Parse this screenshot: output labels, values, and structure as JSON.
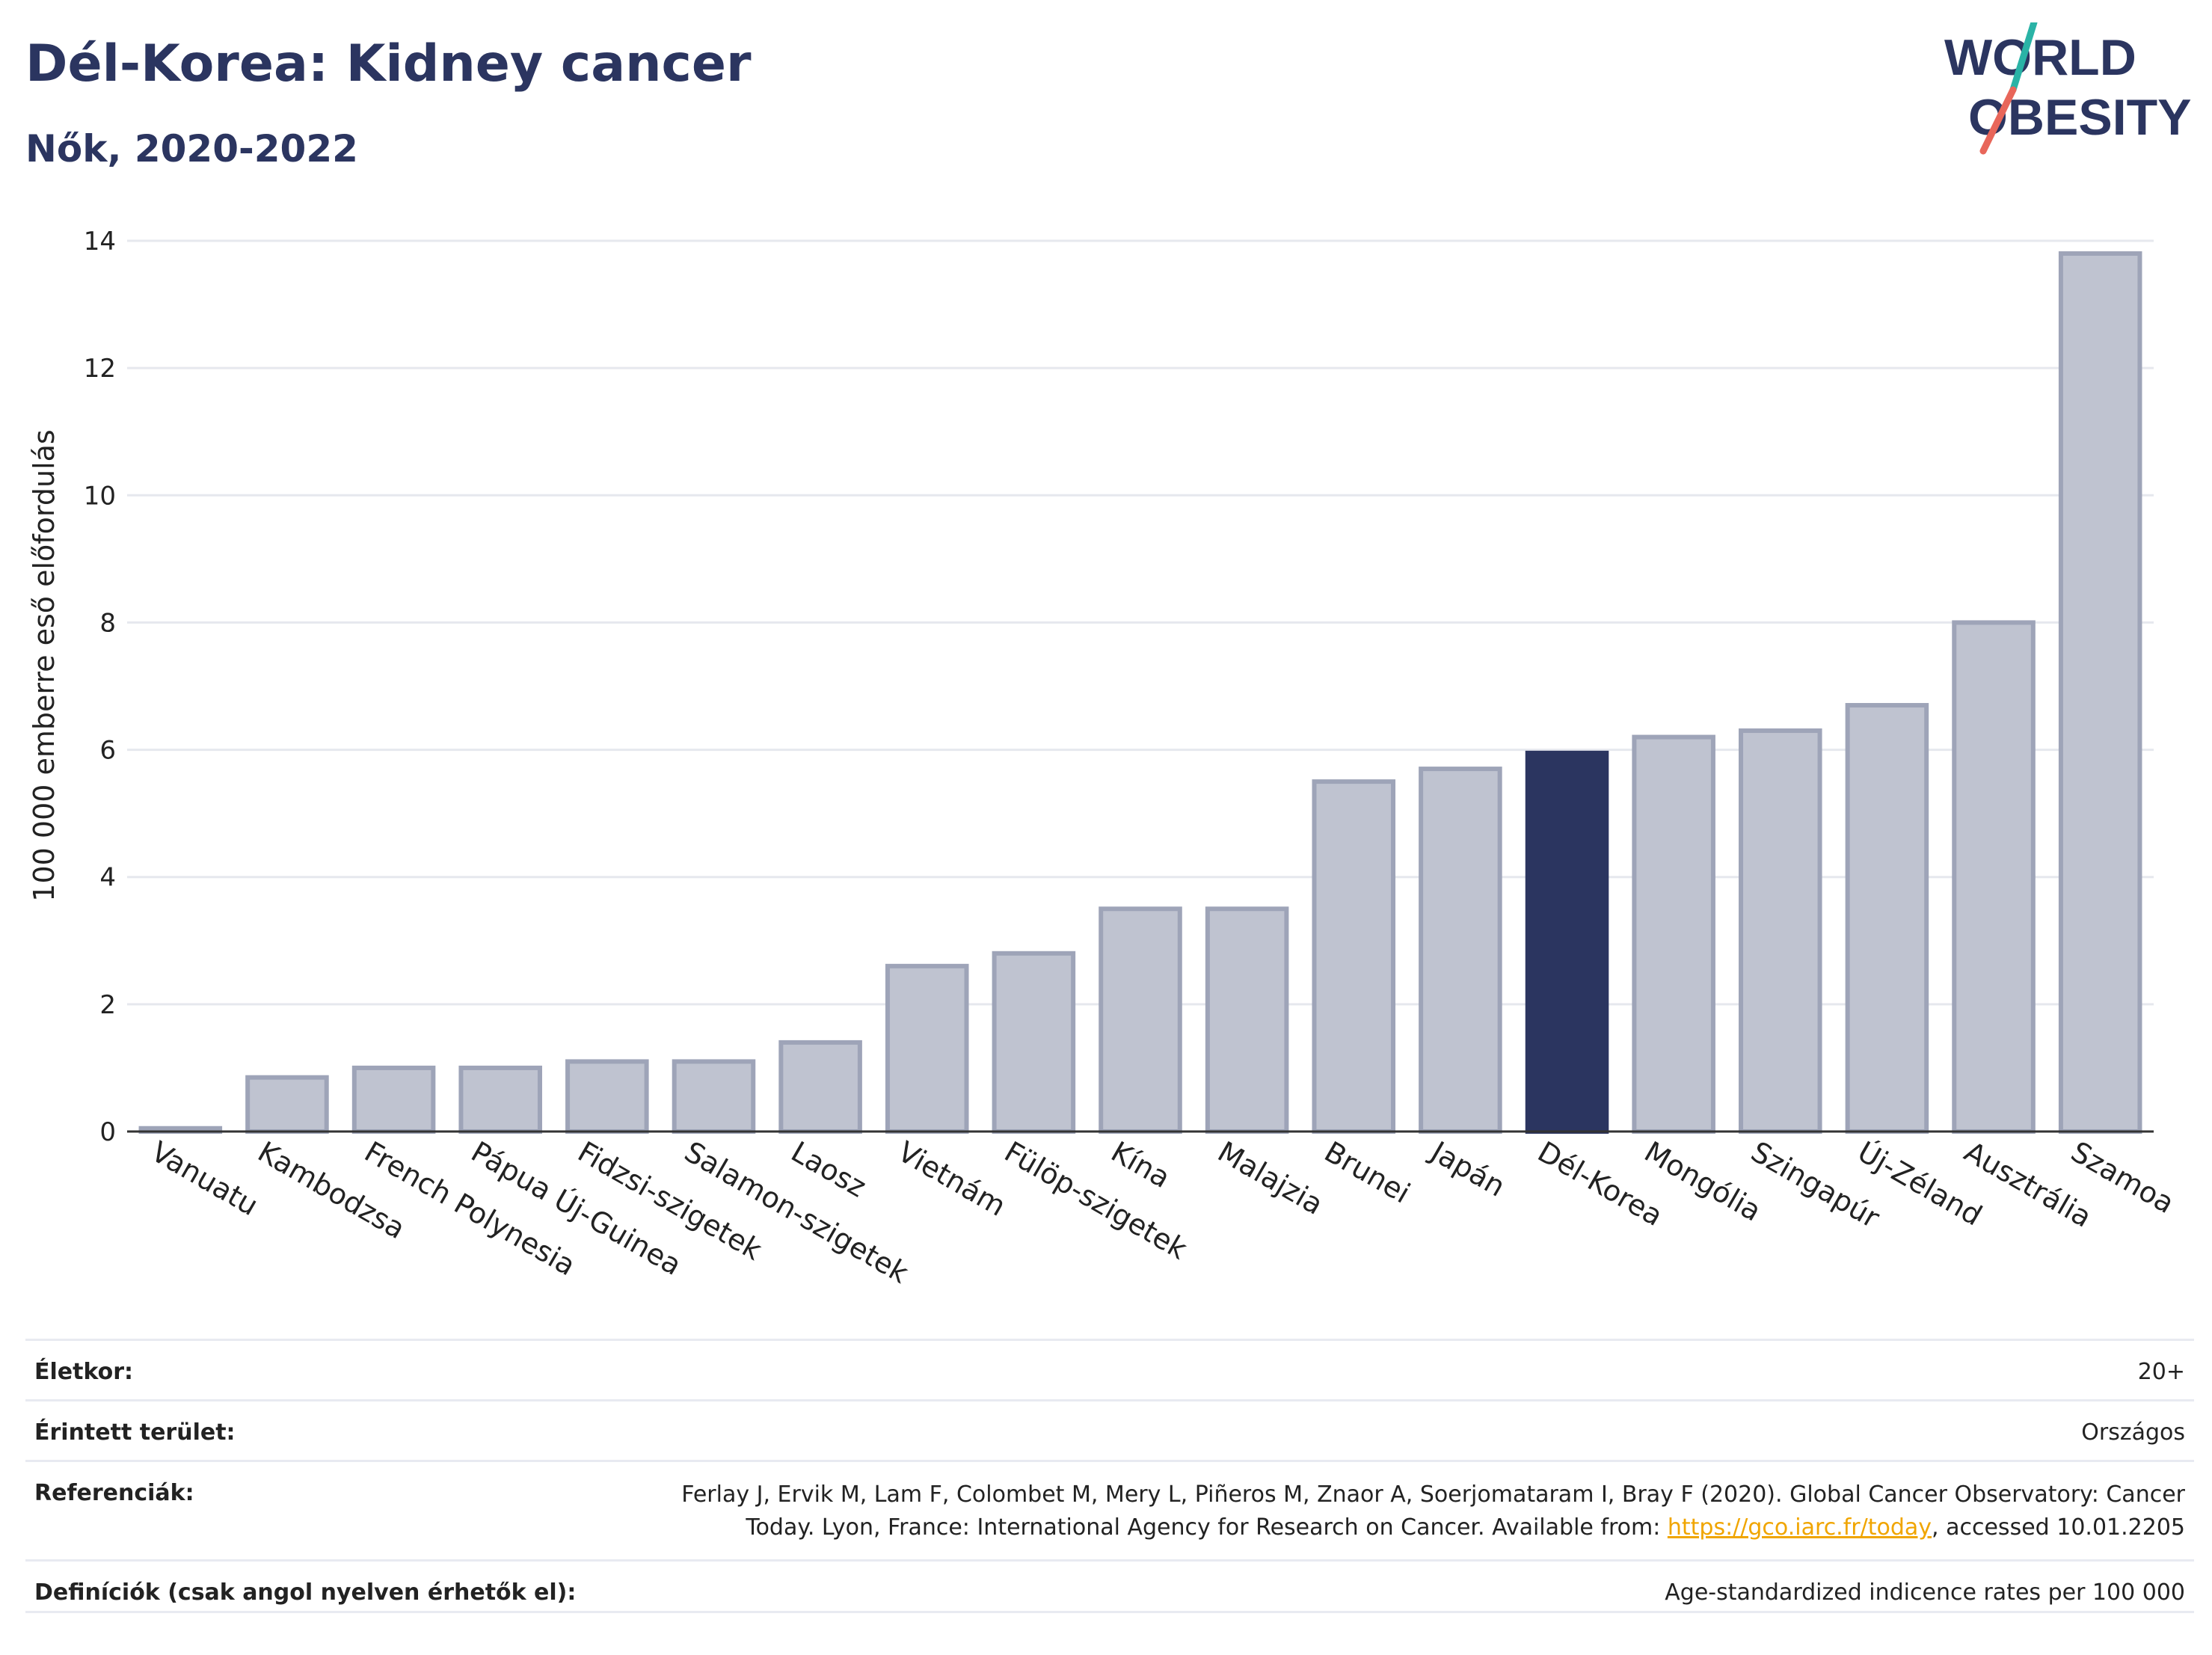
{
  "header": {
    "title": "Dél-Korea: Kidney cancer",
    "subtitle": "Nők, 2020-2022"
  },
  "logo": {
    "line1": "WORLD",
    "line2": "OBESITY",
    "colors": {
      "text": "#2b3560",
      "slash_teal": "#2ab3a6",
      "slash_red": "#e8665a"
    }
  },
  "colors": {
    "highlight": "#2b3560",
    "bar": "#bfc3d0",
    "bar_border": "#9ea4b8",
    "grid": "#e6e8ee",
    "axis": "#333333"
  },
  "chart_data": {
    "type": "bar",
    "ylabel": "100 000 emberre eső előfordulás",
    "ylim": [
      0,
      14
    ],
    "yticks": [
      0,
      2,
      4,
      6,
      8,
      10,
      12,
      14
    ],
    "grid": true,
    "highlight": "Dél-Korea",
    "categories": [
      "Vanuatu",
      "Kambodzsa",
      "French Polynesia",
      "Pápua Új-Guinea",
      "Fidzsi-szigetek",
      "Salamon-szigetek",
      "Laosz",
      "Vietnám",
      "Fülöp-szigetek",
      "Kína",
      "Malajzia",
      "Brunei",
      "Japán",
      "Dél-Korea",
      "Mongólia",
      "Szingapúr",
      "Új-Zéland",
      "Ausztrália",
      "Szamoa"
    ],
    "values": [
      0.05,
      0.85,
      1.0,
      1.0,
      1.1,
      1.1,
      1.4,
      2.6,
      2.8,
      3.5,
      3.5,
      5.5,
      5.7,
      5.95,
      6.2,
      6.3,
      6.7,
      8.0,
      13.8
    ]
  },
  "meta": {
    "age_label": "Életkor:",
    "age_value": "20+",
    "area_label": "Érintett terület:",
    "area_value": "Országos",
    "ref_label": "Referenciák:",
    "ref_line1": "Ferlay J, Ervik M, Lam F, Colombet M, Mery L, Piñeros M, Znaor A, Soerjomataram I, Bray F (2020). Global Cancer Observatory: Cancer",
    "ref_line2_pre": "Today. Lyon, France: International Agency for Research on Cancer. Available from: ",
    "ref_link": "https://gco.iarc.fr/today",
    "ref_line2_post": ", accessed 10.01.2205",
    "def_label": "Definíciók (csak angol nyelven érhetők el):",
    "def_value": "Age-standardized indicence rates per 100 000"
  }
}
